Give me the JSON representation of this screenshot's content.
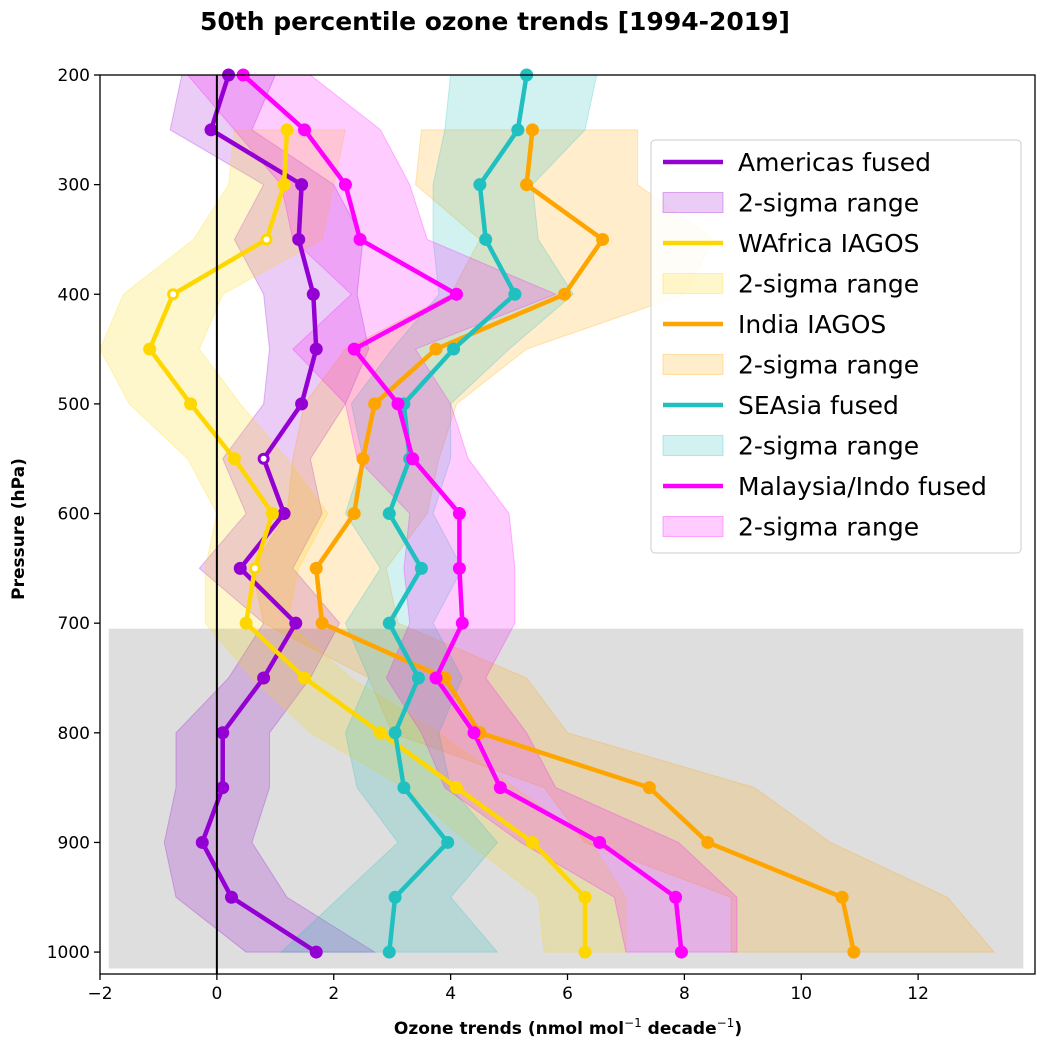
{
  "chart_data": {
    "type": "line",
    "title": "50th percentile ozone trends [1994-2019]",
    "xlabel": "Ozone trends (nmol mol",
    "xlabel_sup1": "−1",
    "xlabel_mid": " decade",
    "xlabel_sup2": "−1",
    "xlabel_end": ")",
    "ylabel": "Pressure (hPa)",
    "xlim": [
      -2,
      14
    ],
    "ylim": [
      1020,
      200
    ],
    "y_inverted": true,
    "xticks": [
      -2,
      0,
      2,
      4,
      6,
      8,
      10,
      12
    ],
    "xtick_labels": [
      "−2",
      "0",
      "2",
      "4",
      "6",
      "8",
      "10",
      "12"
    ],
    "yticks": [
      200,
      300,
      400,
      500,
      600,
      700,
      800,
      900,
      1000
    ],
    "ytick_labels": [
      "200",
      "300",
      "400",
      "500",
      "600",
      "700",
      "800",
      "900",
      "1000"
    ],
    "grid": false,
    "legend_position": "upper-right",
    "reference_line_x": 0,
    "shaded_region": {
      "x_from": -1.85,
      "x_to": 13.8,
      "p_from": 705,
      "p_to": 1015,
      "color": "#dedede"
    },
    "series": [
      {
        "name": "Americas fused",
        "band_name": "2-sigma range",
        "color": "#9400d3",
        "pressure": [
          200,
          250,
          300,
          350,
          400,
          450,
          500,
          550,
          600,
          650,
          700,
          750,
          800,
          850,
          900,
          950,
          1000
        ],
        "values": [
          0.2,
          -0.1,
          1.45,
          1.4,
          1.65,
          1.7,
          1.45,
          0.8,
          1.15,
          0.4,
          1.35,
          0.8,
          0.1,
          0.1,
          -0.25,
          0.25,
          1.7
        ],
        "lower": [
          -0.6,
          -0.8,
          0.8,
          0.3,
          0.8,
          0.9,
          0.8,
          0.1,
          0.5,
          -0.3,
          0.8,
          0.2,
          -0.7,
          -0.7,
          -0.9,
          -0.7,
          0.5
        ],
        "upper": [
          1.0,
          0.6,
          2.0,
          2.5,
          2.4,
          2.6,
          2.2,
          1.6,
          1.8,
          1.3,
          2.1,
          1.6,
          0.9,
          0.9,
          0.6,
          1.2,
          2.7
        ],
        "hollow_markers_at": [
          550
        ]
      },
      {
        "name": "WAfrica IAGOS",
        "band_name": "2-sigma range",
        "color": "#ffd700",
        "pressure": [
          250,
          300,
          350,
          400,
          450,
          500,
          550,
          600,
          650,
          700,
          750,
          800,
          850,
          900,
          950,
          1000
        ],
        "values": [
          1.2,
          1.15,
          0.85,
          -0.75,
          -1.15,
          -0.45,
          0.3,
          0.95,
          0.65,
          0.5,
          1.5,
          2.8,
          4.1,
          5.4,
          6.3,
          6.3
        ],
        "lower": [
          0.3,
          0.2,
          -0.4,
          -1.6,
          -2.0,
          -1.5,
          -0.5,
          0.0,
          -0.2,
          -0.2,
          0.6,
          1.6,
          3.2,
          4.3,
          5.5,
          5.6
        ],
        "upper": [
          2.2,
          2.0,
          1.8,
          0.1,
          -0.3,
          0.4,
          1.2,
          1.9,
          1.4,
          1.2,
          2.3,
          3.8,
          5.1,
          6.4,
          7.0,
          7.0
        ],
        "hollow_markers_at": [
          350,
          400,
          650
        ]
      },
      {
        "name": "India IAGOS",
        "band_name": "2-sigma range",
        "color": "#ffa500",
        "pressure": [
          250,
          300,
          350,
          400,
          450,
          500,
          550,
          600,
          650,
          700,
          750,
          800,
          850,
          900,
          950,
          1000
        ],
        "values": [
          5.4,
          5.3,
          6.6,
          5.95,
          3.75,
          2.7,
          2.5,
          2.35,
          1.7,
          1.8,
          3.9,
          4.5,
          7.4,
          8.4,
          10.7,
          10.9
        ],
        "lower": [
          3.5,
          3.4,
          4.5,
          4.0,
          2.2,
          1.5,
          1.3,
          1.2,
          0.6,
          0.8,
          2.6,
          3.0,
          5.6,
          6.3,
          8.8,
          8.8
        ],
        "upper": [
          7.2,
          7.2,
          8.5,
          8.0,
          5.3,
          4.1,
          3.8,
          3.6,
          2.9,
          3.1,
          5.3,
          6.0,
          9.2,
          10.5,
          12.5,
          13.3
        ],
        "hollow_markers_at": []
      },
      {
        "name": "SEAsia fused",
        "band_name": "2-sigma range",
        "color": "#20c0c0",
        "pressure": [
          200,
          250,
          300,
          350,
          400,
          450,
          500,
          550,
          600,
          650,
          700,
          750,
          800,
          850,
          900,
          950,
          1000
        ],
        "values": [
          5.3,
          5.15,
          4.5,
          4.6,
          5.1,
          4.05,
          3.2,
          3.3,
          2.95,
          3.5,
          2.95,
          3.45,
          3.05,
          3.2,
          3.95,
          3.05,
          2.95
        ],
        "lower": [
          4.0,
          3.9,
          3.7,
          3.7,
          3.8,
          3.0,
          2.3,
          2.5,
          2.2,
          2.8,
          2.2,
          2.6,
          2.2,
          2.4,
          3.1,
          2.1,
          1.1
        ],
        "upper": [
          6.5,
          6.3,
          5.4,
          5.5,
          6.1,
          5.0,
          4.0,
          4.0,
          3.7,
          4.2,
          3.7,
          4.2,
          3.8,
          4.0,
          4.8,
          4.0,
          4.8
        ],
        "hollow_markers_at": []
      },
      {
        "name": "Malaysia/Indo fused",
        "band_name": "2-sigma range",
        "color": "#ff00ff",
        "pressure": [
          200,
          250,
          300,
          350,
          400,
          450,
          500,
          550,
          600,
          650,
          700,
          750,
          800,
          850,
          900,
          950,
          1000
        ],
        "values": [
          0.45,
          1.5,
          2.2,
          2.45,
          4.1,
          2.35,
          3.1,
          3.35,
          4.15,
          4.15,
          4.2,
          3.75,
          4.4,
          4.85,
          6.55,
          7.85,
          7.95
        ],
        "lower": [
          -0.5,
          0.3,
          1.1,
          1.3,
          2.3,
          1.3,
          2.2,
          2.4,
          3.3,
          3.2,
          3.3,
          2.9,
          3.5,
          3.9,
          5.2,
          6.8,
          7.0
        ],
        "upper": [
          1.6,
          2.8,
          3.3,
          3.6,
          5.8,
          3.4,
          4.0,
          4.3,
          5.0,
          5.1,
          5.1,
          4.6,
          5.3,
          5.8,
          7.9,
          8.9,
          8.9
        ],
        "hollow_markers_at": []
      }
    ]
  }
}
